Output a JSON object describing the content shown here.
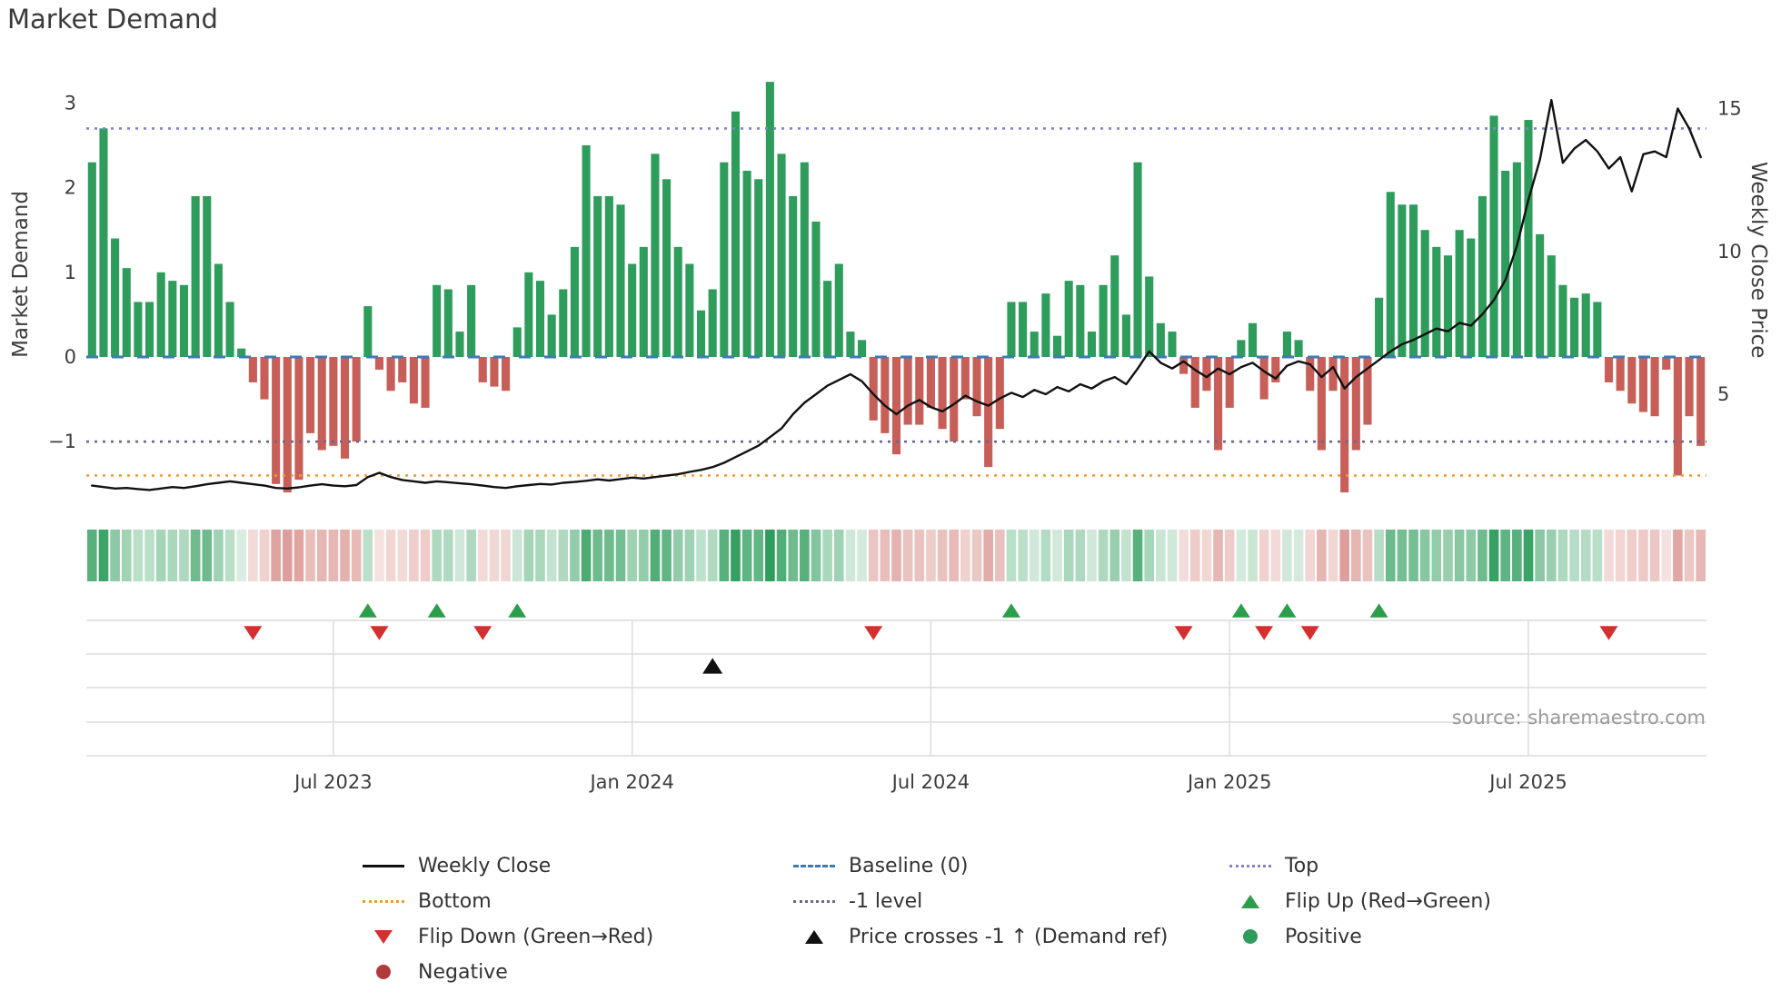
{
  "title": "Market Demand",
  "source": "source: sharemaestro.com",
  "axes": {
    "left_label": "Market Demand",
    "right_label": "Weekly Close Price",
    "left_ticks": [
      {
        "label": "3",
        "value": 3
      },
      {
        "label": "2",
        "value": 2
      },
      {
        "label": "1",
        "value": 1
      },
      {
        "label": "0",
        "value": 0
      },
      {
        "label": "−1",
        "value": -1
      }
    ],
    "right_ticks": [
      {
        "label": "15",
        "value": 15
      },
      {
        "label": "10",
        "value": 10
      },
      {
        "label": "5",
        "value": 5
      }
    ]
  },
  "colors": {
    "positive": "#2e9d5c",
    "negative": "#c75f58",
    "price_line": "#111111",
    "baseline": "#3d7ab5",
    "top_line": "#8282cc",
    "minus1_line": "#68688f",
    "bottom_line": "#ee9b2e",
    "flip_up": "#2c9e4b",
    "flip_down": "#d62f2f",
    "price_cross": "#111111",
    "positive_dot": "#2e9d5c",
    "negative_dot": "#b03a3a",
    "grid": "#dcdcdc",
    "axis_text": "#3d3d3d",
    "source_text": "#9a9a9a"
  },
  "chart_data": {
    "type": "bar+line",
    "title": "Market Demand",
    "x_unit": "week",
    "x_range": "Feb 2023 – Nov 2025 (weekly)",
    "x_ticks": [
      {
        "label": "Jul 2023",
        "index": 21
      },
      {
        "label": "Jan 2024",
        "index": 47
      },
      {
        "label": "Jul 2024",
        "index": 73
      },
      {
        "label": "Jan 2025",
        "index": 99
      },
      {
        "label": "Jul 2025",
        "index": 125
      }
    ],
    "left_axis": {
      "label": "Market Demand",
      "ticks": [
        3,
        2,
        1,
        0,
        -1
      ],
      "range": [
        -1.8,
        3.4
      ]
    },
    "right_axis": {
      "label": "Weekly Close Price",
      "ticks": [
        15,
        10,
        5
      ],
      "range": [
        1.5,
        16.3
      ]
    },
    "series": [
      {
        "name": "Market Demand",
        "type": "bar",
        "axis": "left",
        "values": [
          2.3,
          2.7,
          1.4,
          1.05,
          0.65,
          0.65,
          1.0,
          0.9,
          0.85,
          1.9,
          1.9,
          1.1,
          0.65,
          0.1,
          -0.3,
          -0.5,
          -1.5,
          -1.6,
          -1.45,
          -0.9,
          -1.1,
          -1.05,
          -1.2,
          -1.0,
          0.6,
          -0.15,
          -0.4,
          -0.3,
          -0.55,
          -0.6,
          0.85,
          0.8,
          0.3,
          0.85,
          -0.3,
          -0.35,
          -0.4,
          0.35,
          1.0,
          0.9,
          0.5,
          0.8,
          1.3,
          2.5,
          1.9,
          1.9,
          1.8,
          1.1,
          1.3,
          2.4,
          2.1,
          1.3,
          1.1,
          0.55,
          0.8,
          2.3,
          2.9,
          2.2,
          2.1,
          3.25,
          2.4,
          1.9,
          2.3,
          1.6,
          0.9,
          1.1,
          0.3,
          0.2,
          -0.75,
          -0.9,
          -1.15,
          -0.8,
          -0.8,
          -0.6,
          -0.85,
          -1.0,
          -0.5,
          -0.7,
          -1.3,
          -0.85,
          0.65,
          0.65,
          0.3,
          0.75,
          0.25,
          0.9,
          0.85,
          0.3,
          0.85,
          1.2,
          0.5,
          2.3,
          0.95,
          0.4,
          0.3,
          -0.2,
          -0.6,
          -0.4,
          -1.1,
          -0.6,
          0.2,
          0.4,
          -0.5,
          -0.3,
          0.3,
          0.2,
          -0.4,
          -1.1,
          -0.4,
          -1.6,
          -1.1,
          -0.8,
          0.7,
          1.95,
          1.8,
          1.8,
          1.5,
          1.3,
          1.2,
          1.5,
          1.4,
          1.9,
          2.85,
          2.2,
          2.3,
          2.8,
          1.45,
          1.2,
          0.85,
          0.7,
          0.75,
          0.65,
          -0.3,
          -0.4,
          -0.55,
          -0.65,
          -0.7,
          -0.15,
          -1.4,
          -0.7,
          -1.05
        ]
      },
      {
        "name": "Weekly Close",
        "type": "line",
        "axis": "right",
        "values": [
          1.8,
          1.75,
          1.7,
          1.72,
          1.68,
          1.65,
          1.7,
          1.75,
          1.72,
          1.78,
          1.85,
          1.9,
          1.95,
          1.9,
          1.85,
          1.8,
          1.72,
          1.7,
          1.74,
          1.8,
          1.85,
          1.8,
          1.78,
          1.82,
          2.1,
          2.25,
          2.1,
          2.0,
          1.95,
          1.9,
          1.95,
          1.92,
          1.88,
          1.85,
          1.8,
          1.75,
          1.72,
          1.78,
          1.82,
          1.86,
          1.84,
          1.9,
          1.93,
          1.97,
          2.02,
          1.98,
          2.03,
          2.08,
          2.05,
          2.1,
          2.15,
          2.2,
          2.28,
          2.35,
          2.45,
          2.6,
          2.8,
          3.0,
          3.2,
          3.5,
          3.8,
          4.3,
          4.7,
          5.0,
          5.3,
          5.5,
          5.7,
          5.45,
          5.0,
          4.6,
          4.3,
          4.6,
          4.8,
          4.55,
          4.4,
          4.65,
          4.95,
          4.75,
          4.6,
          4.85,
          5.05,
          4.9,
          5.15,
          5.0,
          5.25,
          5.1,
          5.35,
          5.2,
          5.45,
          5.6,
          5.35,
          5.9,
          6.5,
          6.1,
          5.9,
          6.15,
          5.85,
          5.6,
          5.9,
          5.7,
          5.95,
          6.1,
          5.8,
          5.55,
          6.0,
          6.15,
          6.05,
          5.6,
          5.95,
          5.2,
          5.6,
          5.9,
          6.2,
          6.5,
          6.75,
          6.9,
          7.1,
          7.3,
          7.2,
          7.5,
          7.4,
          7.8,
          8.3,
          9.0,
          10.2,
          11.8,
          13.2,
          15.3,
          13.1,
          13.6,
          13.9,
          13.5,
          12.9,
          13.3,
          12.1,
          13.4,
          13.5,
          13.3,
          15.0,
          14.3,
          13.3
        ]
      }
    ],
    "ref_lines": [
      {
        "name": "Baseline (0)",
        "axis": "left",
        "value": 0,
        "style": "dashed",
        "color": "#3d7ab5"
      },
      {
        "name": "Top",
        "axis": "left",
        "value": 2.7,
        "style": "dotted",
        "color": "#8282cc"
      },
      {
        "name": "-1 level",
        "axis": "left",
        "value": -1,
        "style": "dotted",
        "color": "#68688f"
      },
      {
        "name": "Bottom",
        "axis": "left",
        "value": -1.4,
        "style": "dotted",
        "color": "#ee9b2e"
      }
    ],
    "markers": {
      "flip_up_indices": [
        24,
        30,
        37,
        80,
        100,
        104,
        112
      ],
      "flip_down_indices": [
        14,
        25,
        34,
        68,
        95,
        102,
        106,
        132
      ],
      "price_cross_up_indices": [
        54
      ]
    },
    "heatmap": {
      "desc": "weekly demand intensity strip: hue = sign of demand, opacity = |demand|",
      "source_series": "Market Demand"
    }
  },
  "legend": {
    "items": [
      {
        "label": "Weekly Close"
      },
      {
        "label": "Bottom"
      },
      {
        "label": "Flip Down (Green→Red)"
      },
      {
        "label": "Negative"
      },
      {
        "label": "Baseline (0)"
      },
      {
        "label": "-1 level"
      },
      {
        "label": "Price crosses -1 ↑ (Demand ref)"
      },
      {
        "label": "Top"
      },
      {
        "label": "Flip Up (Red→Green)"
      },
      {
        "label": "Positive"
      }
    ]
  }
}
